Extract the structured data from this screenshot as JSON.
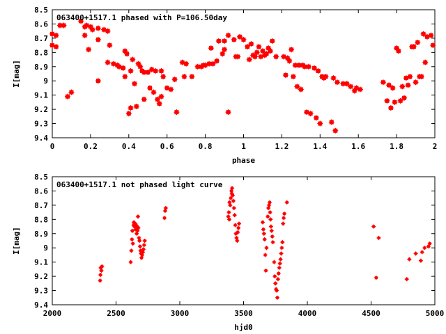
{
  "colors": {
    "points": "#ff0000",
    "axes": "#000000",
    "background": "#ffffff"
  },
  "chart_data": [
    {
      "type": "scatter",
      "title": "063400+1517.1 phased with P=106.50day",
      "xlabel": "phase",
      "ylabel": "I[mag]",
      "xlim": [
        0,
        2
      ],
      "ylim": [
        9.4,
        8.5
      ],
      "y_inverted": true,
      "grid": false,
      "x_ticks": [
        "0",
        "0.2",
        "0.4",
        "0.6",
        "0.8",
        "1",
        "1.2",
        "1.4",
        "1.6",
        "1.8",
        "2"
      ],
      "y_ticks": [
        "8.5",
        "8.6",
        "8.7",
        "8.8",
        "8.9",
        "9",
        "9.1",
        "9.2",
        "9.3",
        "9.4"
      ],
      "points": [
        [
          0.0,
          8.67
        ],
        [
          0.0,
          8.75
        ],
        [
          0.02,
          8.68
        ],
        [
          0.02,
          8.76
        ],
        [
          0.04,
          8.61
        ],
        [
          0.06,
          8.61
        ],
        [
          0.08,
          9.11
        ],
        [
          0.1,
          9.08
        ],
        [
          0.15,
          8.58
        ],
        [
          0.17,
          8.62
        ],
        [
          0.17,
          8.68
        ],
        [
          0.18,
          8.61
        ],
        [
          0.19,
          8.78
        ],
        [
          0.2,
          8.62
        ],
        [
          0.21,
          8.64
        ],
        [
          0.24,
          8.63
        ],
        [
          0.24,
          8.71
        ],
        [
          0.24,
          9.0
        ],
        [
          0.27,
          8.64
        ],
        [
          0.29,
          8.65
        ],
        [
          0.29,
          8.87
        ],
        [
          0.3,
          8.75
        ],
        [
          0.32,
          8.88
        ],
        [
          0.34,
          8.89
        ],
        [
          0.35,
          8.9
        ],
        [
          0.37,
          8.91
        ],
        [
          0.37,
          8.91
        ],
        [
          0.38,
          8.97
        ],
        [
          0.38,
          8.79
        ],
        [
          0.39,
          8.81
        ],
        [
          0.4,
          9.23
        ],
        [
          0.41,
          8.93
        ],
        [
          0.41,
          9.19
        ],
        [
          0.42,
          8.85
        ],
        [
          0.43,
          9.02
        ],
        [
          0.44,
          9.18
        ],
        [
          0.45,
          8.88
        ],
        [
          0.46,
          8.9
        ],
        [
          0.47,
          8.93
        ],
        [
          0.48,
          9.13
        ],
        [
          0.48,
          8.94
        ],
        [
          0.5,
          8.94
        ],
        [
          0.51,
          9.05
        ],
        [
          0.52,
          8.92
        ],
        [
          0.53,
          9.08
        ],
        [
          0.54,
          8.93
        ],
        [
          0.55,
          9.13
        ],
        [
          0.56,
          9.16
        ],
        [
          0.57,
          8.93
        ],
        [
          0.57,
          9.11
        ],
        [
          0.58,
          8.97
        ],
        [
          0.6,
          9.05
        ],
        [
          0.62,
          9.06
        ],
        [
          0.64,
          8.99
        ],
        [
          0.65,
          9.22
        ],
        [
          0.68,
          8.87
        ],
        [
          0.69,
          8.97
        ],
        [
          0.7,
          8.88
        ],
        [
          0.73,
          8.97
        ],
        [
          0.76,
          8.9
        ],
        [
          0.78,
          8.9
        ],
        [
          0.79,
          8.89
        ],
        [
          0.8,
          8.89
        ],
        [
          0.82,
          8.88
        ],
        [
          0.83,
          8.77
        ],
        [
          0.84,
          8.88
        ],
        [
          0.86,
          8.86
        ],
        [
          0.87,
          8.72
        ],
        [
          0.89,
          8.81
        ],
        [
          0.9,
          8.72
        ],
        [
          0.9,
          8.78
        ],
        [
          0.92,
          8.68
        ],
        [
          0.92,
          9.22
        ],
        [
          0.95,
          8.71
        ],
        [
          0.96,
          8.83
        ],
        [
          0.97,
          8.83
        ],
        [
          0.98,
          8.69
        ],
        [
          1.0,
          8.71
        ],
        [
          1.02,
          8.76
        ],
        [
          1.03,
          8.85
        ],
        [
          1.04,
          8.74
        ],
        [
          1.05,
          8.82
        ],
        [
          1.06,
          8.83
        ],
        [
          1.07,
          8.8
        ],
        [
          1.08,
          8.76
        ],
        [
          1.09,
          8.83
        ],
        [
          1.1,
          8.79
        ],
        [
          1.11,
          8.82
        ],
        [
          1.12,
          8.81
        ],
        [
          1.13,
          8.77
        ],
        [
          1.14,
          8.79
        ],
        [
          1.15,
          8.72
        ],
        [
          1.17,
          8.83
        ],
        [
          1.21,
          8.83
        ],
        [
          1.22,
          8.96
        ],
        [
          1.23,
          8.84
        ],
        [
          1.24,
          8.86
        ],
        [
          1.25,
          8.78
        ],
        [
          1.26,
          8.97
        ],
        [
          1.27,
          8.89
        ],
        [
          1.28,
          9.04
        ],
        [
          1.29,
          8.89
        ],
        [
          1.3,
          9.06
        ],
        [
          1.31,
          8.89
        ],
        [
          1.32,
          8.9
        ],
        [
          1.33,
          9.22
        ],
        [
          1.34,
          8.9
        ],
        [
          1.35,
          9.23
        ],
        [
          1.37,
          8.91
        ],
        [
          1.38,
          9.26
        ],
        [
          1.39,
          8.93
        ],
        [
          1.4,
          9.3
        ],
        [
          1.41,
          8.97
        ],
        [
          1.42,
          8.98
        ],
        [
          1.43,
          8.97
        ],
        [
          1.46,
          9.29
        ],
        [
          1.47,
          8.98
        ],
        [
          1.48,
          9.35
        ],
        [
          1.49,
          9.01
        ],
        [
          1.52,
          9.02
        ],
        [
          1.54,
          9.02
        ],
        [
          1.56,
          9.04
        ],
        [
          1.58,
          9.07
        ],
        [
          1.59,
          9.05
        ],
        [
          1.61,
          9.06
        ],
        [
          1.73,
          9.01
        ],
        [
          1.75,
          9.14
        ],
        [
          1.76,
          9.03
        ],
        [
          1.77,
          9.19
        ],
        [
          1.78,
          9.05
        ],
        [
          1.79,
          9.15
        ],
        [
          1.8,
          8.77
        ],
        [
          1.81,
          8.79
        ],
        [
          1.82,
          9.14
        ],
        [
          1.83,
          9.04
        ],
        [
          1.84,
          9.12
        ],
        [
          1.85,
          8.98
        ],
        [
          1.86,
          9.03
        ],
        [
          1.87,
          8.97
        ],
        [
          1.88,
          8.76
        ],
        [
          1.89,
          8.76
        ],
        [
          1.9,
          9.01
        ],
        [
          1.91,
          8.73
        ],
        [
          1.92,
          8.97
        ],
        [
          1.93,
          8.97
        ],
        [
          1.94,
          8.67
        ],
        [
          1.95,
          8.87
        ],
        [
          1.96,
          8.69
        ],
        [
          1.98,
          8.68
        ],
        [
          1.99,
          8.75
        ]
      ]
    },
    {
      "type": "scatter",
      "title": "063400+1517.1 not phased light curve",
      "xlabel": "hjd0",
      "ylabel": "I[mag]",
      "xlim": [
        2000,
        5000
      ],
      "ylim": [
        9.4,
        8.5
      ],
      "y_inverted": true,
      "grid": false,
      "x_ticks": [
        "2000",
        "2500",
        "3000",
        "3500",
        "4000",
        "4500",
        "5000"
      ],
      "y_ticks": [
        "8.5",
        "8.6",
        "8.7",
        "8.8",
        "8.9",
        "9",
        "9.1",
        "9.2",
        "9.3",
        "9.4"
      ],
      "points": [
        [
          2375,
          9.23
        ],
        [
          2378,
          9.19
        ],
        [
          2380,
          9.14
        ],
        [
          2385,
          9.16
        ],
        [
          2390,
          9.13
        ],
        [
          2615,
          9.1
        ],
        [
          2620,
          9.02
        ],
        [
          2625,
          8.94
        ],
        [
          2628,
          8.88
        ],
        [
          2632,
          8.97
        ],
        [
          2638,
          8.84
        ],
        [
          2640,
          8.82
        ],
        [
          2645,
          8.85
        ],
        [
          2650,
          8.83
        ],
        [
          2653,
          8.87
        ],
        [
          2658,
          8.84
        ],
        [
          2662,
          8.9
        ],
        [
          2665,
          8.85
        ],
        [
          2668,
          8.88
        ],
        [
          2672,
          8.78
        ],
        [
          2675,
          8.86
        ],
        [
          2680,
          8.93
        ],
        [
          2684,
          8.95
        ],
        [
          2688,
          8.99
        ],
        [
          2692,
          9.02
        ],
        [
          2696,
          9.04
        ],
        [
          2700,
          9.07
        ],
        [
          2705,
          9.05
        ],
        [
          2710,
          9.03
        ],
        [
          2715,
          9.01
        ],
        [
          2720,
          8.98
        ],
        [
          2725,
          8.95
        ],
        [
          2880,
          8.79
        ],
        [
          2885,
          8.74
        ],
        [
          2890,
          8.72
        ],
        [
          3380,
          8.78
        ],
        [
          3385,
          8.75
        ],
        [
          3388,
          8.8
        ],
        [
          3390,
          8.68
        ],
        [
          3395,
          8.7
        ],
        [
          3400,
          8.65
        ],
        [
          3405,
          8.6
        ],
        [
          3408,
          8.62
        ],
        [
          3410,
          8.58
        ],
        [
          3415,
          8.63
        ],
        [
          3420,
          8.67
        ],
        [
          3425,
          8.72
        ],
        [
          3430,
          8.77
        ],
        [
          3435,
          8.84
        ],
        [
          3440,
          8.9
        ],
        [
          3445,
          8.93
        ],
        [
          3450,
          8.95
        ],
        [
          3455,
          8.89
        ],
        [
          3460,
          8.86
        ],
        [
          3465,
          8.83
        ],
        [
          3650,
          8.82
        ],
        [
          3655,
          8.87
        ],
        [
          3660,
          8.9
        ],
        [
          3665,
          8.94
        ],
        [
          3670,
          9.05
        ],
        [
          3675,
          9.16
        ],
        [
          3680,
          9.0
        ],
        [
          3690,
          8.78
        ],
        [
          3695,
          8.72
        ],
        [
          3700,
          8.7
        ],
        [
          3705,
          8.68
        ],
        [
          3708,
          8.75
        ],
        [
          3712,
          8.8
        ],
        [
          3715,
          8.85
        ],
        [
          3720,
          8.88
        ],
        [
          3725,
          8.92
        ],
        [
          3730,
          8.96
        ],
        [
          3740,
          9.1
        ],
        [
          3745,
          9.2
        ],
        [
          3750,
          9.25
        ],
        [
          3755,
          9.29
        ],
        [
          3760,
          9.3
        ],
        [
          3765,
          9.35
        ],
        [
          3770,
          9.22
        ],
        [
          3775,
          9.18
        ],
        [
          3780,
          9.14
        ],
        [
          3785,
          9.11
        ],
        [
          3790,
          9.08
        ],
        [
          3795,
          9.04
        ],
        [
          3800,
          9.0
        ],
        [
          3805,
          8.96
        ],
        [
          3810,
          8.83
        ],
        [
          3815,
          8.79
        ],
        [
          3820,
          8.76
        ],
        [
          3840,
          8.68
        ],
        [
          4520,
          8.85
        ],
        [
          4540,
          9.21
        ],
        [
          4560,
          8.93
        ],
        [
          4780,
          9.22
        ],
        [
          4800,
          9.08
        ],
        [
          4850,
          9.04
        ],
        [
          4890,
          9.09
        ],
        [
          4900,
          9.03
        ],
        [
          4920,
          9.0
        ],
        [
          4950,
          8.99
        ],
        [
          4960,
          8.97
        ]
      ]
    }
  ]
}
